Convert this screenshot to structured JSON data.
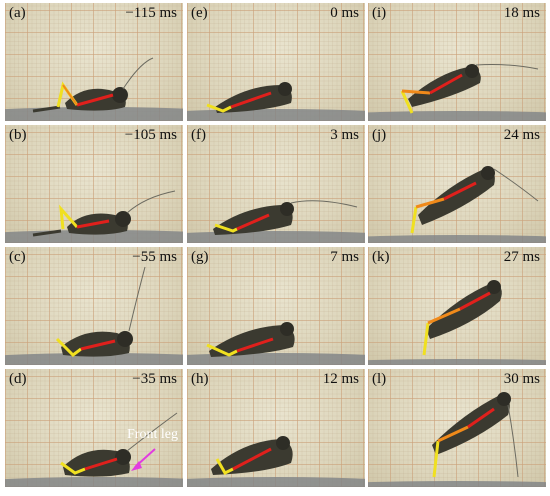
{
  "panels": [
    {
      "label": "(a)",
      "time": "−115 ms"
    },
    {
      "label": "(b)",
      "time": "−105 ms"
    },
    {
      "label": "(c)",
      "time": "−55 ms"
    },
    {
      "label": "(d)",
      "time": "−35 ms"
    },
    {
      "label": "(e)",
      "time": "0 ms"
    },
    {
      "label": "(f)",
      "time": "3 ms"
    },
    {
      "label": "(g)",
      "time": "7 ms"
    },
    {
      "label": "(h)",
      "time": "12 ms"
    },
    {
      "label": "(i)",
      "time": "18 ms"
    },
    {
      "label": "(j)",
      "time": "24 ms"
    },
    {
      "label": "(k)",
      "time": "27 ms"
    },
    {
      "label": "(l)",
      "time": "30 ms"
    }
  ],
  "annotation": {
    "text": "Front leg",
    "arrow_color": "#e23be0"
  },
  "colors": {
    "body_line": "#e0201c",
    "tibia_line": "#f0e020",
    "femur_line": "#f08a1a",
    "insect": "#3b3a30",
    "substrate": "#8a8d90"
  }
}
